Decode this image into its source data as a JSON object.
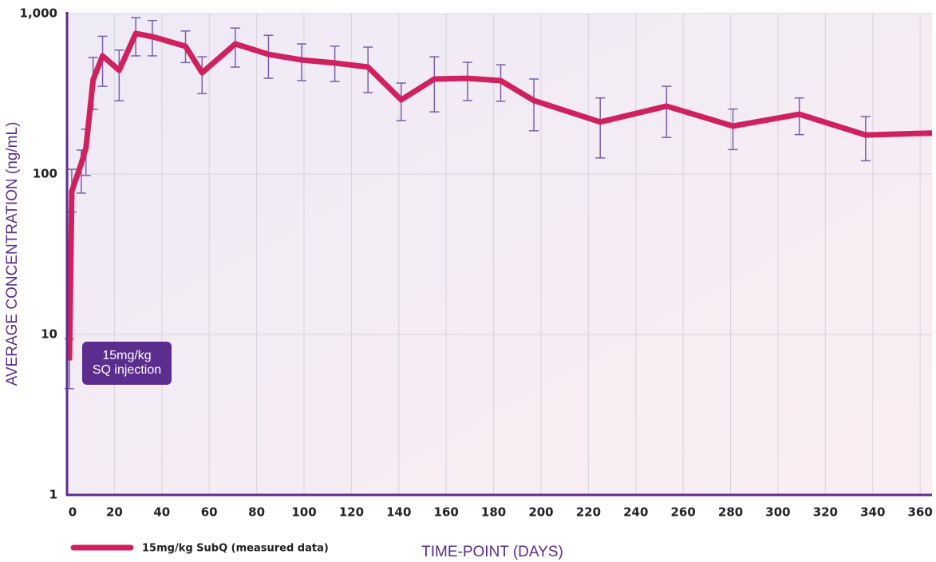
{
  "chart_data": {
    "type": "line",
    "log_y": true,
    "grid": true,
    "legend": "bottom-left",
    "xlabel": "TIME-POINT (DAYS)",
    "ylabel": "AVERAGE CONCENTRATION (ng/mL)",
    "annotation": "15mg/kg\nSQ injection",
    "xlim": [
      0,
      365
    ],
    "ylim": [
      1,
      1000
    ],
    "xticks": [
      0,
      20,
      40,
      60,
      80,
      100,
      120,
      140,
      160,
      180,
      200,
      220,
      240,
      260,
      280,
      300,
      320,
      340,
      360
    ],
    "yticks": [
      1,
      10,
      100,
      {
        "value": 1000,
        "label": "1,000"
      }
    ],
    "x": [
      1,
      2,
      6,
      8,
      11,
      15,
      22,
      29,
      36,
      50,
      57,
      71,
      85,
      99,
      113,
      127,
      141,
      155,
      169,
      183,
      197,
      225,
      253,
      281,
      309,
      337,
      365
    ],
    "series": [
      {
        "name": "15mg/kg SubQ (measured data)",
        "color": "#d0215f",
        "error_color": "#7b5ea7",
        "values": [
          6.9,
          78,
          116,
          146,
          386,
          545,
          443,
          751,
          718,
          625,
          428,
          647,
          557,
          514,
          492,
          464,
          290,
          391,
          395,
          382,
          287,
          211,
          265,
          199,
          236,
          175,
          180
        ],
        "upper": [
          9.4,
          107,
          141,
          190,
          532,
          722,
          592,
          943,
          905,
          779,
          538,
          812,
          732,
          647,
          627,
          618,
          369,
          538,
          497,
          480,
          391,
          298,
          352,
          254,
          298,
          228,
          null
        ],
        "lower": [
          4.6,
          58,
          76,
          98,
          253,
          352,
          286,
          545,
          545,
          495,
          317,
          464,
          395,
          382,
          377,
          322,
          215,
          244,
          287,
          284,
          186,
          126,
          169,
          142,
          176,
          121,
          null
        ]
      }
    ]
  }
}
